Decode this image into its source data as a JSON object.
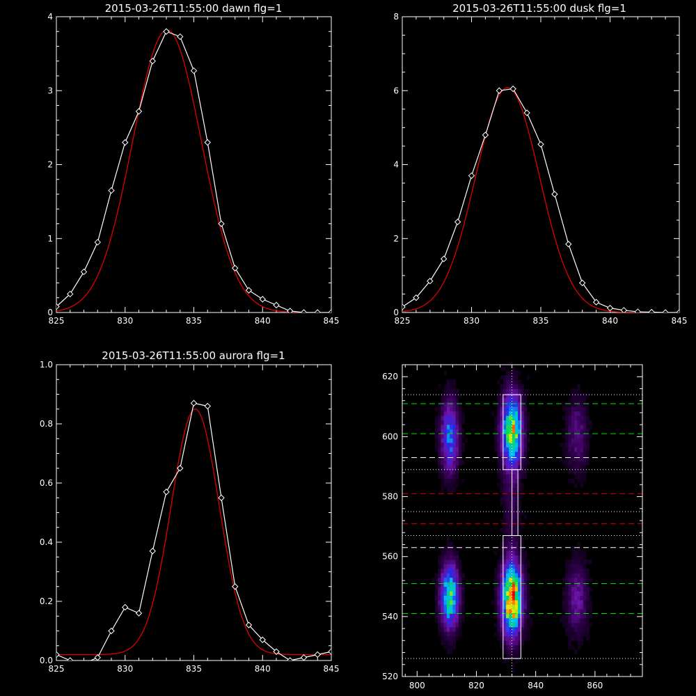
{
  "figure": {
    "background": "#000000",
    "axis_color": "#ffffff",
    "data_color": "#ffffff",
    "fit_color": "#e00000"
  },
  "chart_data": [
    {
      "id": "dawn",
      "type": "line",
      "title": "2015-03-26T11:55:00 dawn flg=1",
      "xlabel": "",
      "ylabel": "",
      "xlim": [
        825,
        845
      ],
      "ylim": [
        0,
        4
      ],
      "xticks": [
        825,
        830,
        835,
        840,
        845
      ],
      "yticks": [
        0,
        1,
        2,
        3,
        4
      ],
      "grid": false,
      "series": [
        {
          "role": "data",
          "marker": "diamond",
          "x": [
            825,
            826,
            827,
            828,
            829,
            830,
            831,
            832,
            833,
            834,
            835,
            836,
            837,
            838,
            839,
            840,
            841,
            842,
            843,
            844,
            845
          ],
          "y": [
            0.08,
            0.25,
            0.55,
            0.95,
            1.65,
            2.3,
            2.72,
            3.4,
            3.8,
            3.73,
            3.27,
            2.3,
            1.2,
            0.6,
            0.3,
            0.18,
            0.1,
            0.02,
            0.0,
            0.0,
            0.0
          ]
        },
        {
          "role": "fit",
          "model": "gaussian",
          "amplitude": 3.82,
          "center": 833.05,
          "sigma": 2.5,
          "offset": 0.0
        }
      ]
    },
    {
      "id": "dusk",
      "type": "line",
      "title": "2015-03-26T11:55:00 dusk flg=1",
      "xlabel": "",
      "ylabel": "",
      "xlim": [
        825,
        845
      ],
      "ylim": [
        0,
        8
      ],
      "xticks": [
        825,
        830,
        835,
        840,
        845
      ],
      "yticks": [
        0,
        2,
        4,
        6,
        8
      ],
      "grid": false,
      "series": [
        {
          "role": "data",
          "marker": "diamond",
          "x": [
            825,
            826,
            827,
            828,
            829,
            830,
            831,
            832,
            833,
            834,
            835,
            836,
            837,
            838,
            839,
            840,
            841,
            842,
            843,
            844,
            845
          ],
          "y": [
            0.15,
            0.4,
            0.85,
            1.45,
            2.45,
            3.7,
            4.8,
            6.0,
            6.05,
            5.4,
            4.55,
            3.2,
            1.85,
            0.8,
            0.28,
            0.12,
            0.06,
            0.02,
            0.01,
            0.0,
            0.0
          ]
        },
        {
          "role": "fit",
          "model": "gaussian",
          "amplitude": 6.08,
          "center": 832.6,
          "sigma": 2.3,
          "offset": 0.0
        }
      ]
    },
    {
      "id": "aurora",
      "type": "line",
      "title": "2015-03-26T11:55:00 aurora flg=1",
      "xlabel": "",
      "ylabel": "",
      "xlim": [
        825,
        845
      ],
      "ylim": [
        0,
        1.0
      ],
      "xticks": [
        825,
        830,
        835,
        840,
        845
      ],
      "yticks": [
        0.0,
        0.2,
        0.4,
        0.6,
        0.8,
        1.0
      ],
      "ytick_labels": [
        "0.0",
        "0.2",
        "0.4",
        "0.6",
        "0.8",
        "1.0"
      ],
      "grid": false,
      "series": [
        {
          "role": "data",
          "marker": "diamond",
          "x": [
            825,
            826,
            827,
            828,
            829,
            830,
            831,
            832,
            833,
            834,
            835,
            836,
            837,
            838,
            839,
            840,
            841,
            842,
            843,
            844,
            845
          ],
          "y": [
            0.02,
            0.0,
            -0.01,
            0.01,
            0.1,
            0.18,
            0.16,
            0.37,
            0.57,
            0.65,
            0.87,
            0.86,
            0.55,
            0.25,
            0.12,
            0.07,
            0.03,
            0.0,
            0.01,
            0.02,
            0.03
          ]
        },
        {
          "role": "fit",
          "model": "gaussian",
          "amplitude": 0.83,
          "center": 835.1,
          "sigma": 1.75,
          "offset": 0.02
        }
      ]
    },
    {
      "id": "image",
      "type": "heatmap",
      "title": "",
      "xlabel": "",
      "ylabel": "",
      "xlim": [
        795,
        876
      ],
      "ylim": [
        520,
        624
      ],
      "xticks": [
        800,
        820,
        840,
        860
      ],
      "yticks": [
        520,
        540,
        560,
        580,
        600,
        620
      ],
      "colormap": "rainbow",
      "emission_sources": [
        {
          "x": 811,
          "y": 547,
          "sx": 2.0,
          "sy": 7,
          "amp": 0.7
        },
        {
          "x": 832,
          "y": 546,
          "sx": 2.3,
          "sy": 8,
          "amp": 1.0
        },
        {
          "x": 854,
          "y": 546,
          "sx": 2.4,
          "sy": 8,
          "amp": 0.22
        },
        {
          "x": 811,
          "y": 600,
          "sx": 2.0,
          "sy": 8,
          "amp": 0.45
        },
        {
          "x": 832,
          "y": 602,
          "sx": 2.3,
          "sy": 8,
          "amp": 0.8
        },
        {
          "x": 854,
          "y": 601,
          "sx": 2.4,
          "sy": 8,
          "amp": 0.18
        },
        {
          "x": 832,
          "y": 578,
          "sx": 2.0,
          "sy": 10,
          "amp": 0.1
        }
      ],
      "boxes": [
        {
          "x0": 829,
          "x1": 835,
          "y0": 589,
          "y1": 614
        },
        {
          "x0": 829,
          "x1": 835,
          "y0": 526,
          "y1": 567
        },
        {
          "x0": 832,
          "x1": 834,
          "y0": 567,
          "y1": 589
        }
      ],
      "hlines": [
        {
          "y": 611,
          "color": "#00e000",
          "style": "dashed"
        },
        {
          "y": 601,
          "color": "#00e000",
          "style": "dashed"
        },
        {
          "y": 593,
          "color": "#ffffff",
          "style": "dashed"
        },
        {
          "y": 581,
          "color": "#e00000",
          "style": "dashed"
        },
        {
          "y": 571,
          "color": "#e00000",
          "style": "dashed"
        },
        {
          "y": 563,
          "color": "#ffffff",
          "style": "dashed"
        },
        {
          "y": 551,
          "color": "#00e000",
          "style": "dashed"
        },
        {
          "y": 541,
          "color": "#00e000",
          "style": "dashed"
        },
        {
          "y": 614,
          "color": "#ffffff",
          "style": "dotted"
        },
        {
          "y": 589,
          "color": "#ffffff",
          "style": "dotted"
        },
        {
          "y": 575,
          "color": "#ffffff",
          "style": "dotted"
        },
        {
          "y": 567,
          "color": "#ffffff",
          "style": "dotted"
        },
        {
          "y": 526,
          "color": "#ffffff",
          "style": "dotted"
        }
      ],
      "vlines": [
        {
          "x": 832,
          "color": "#ffffff",
          "style": "dotted"
        }
      ]
    }
  ]
}
